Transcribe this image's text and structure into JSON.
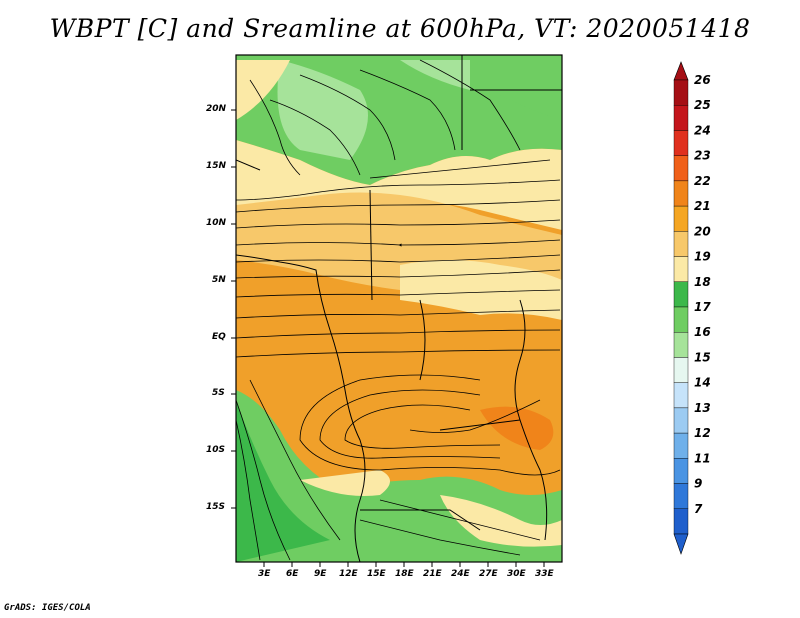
{
  "title": "WBPT [C] and Sreamline at 600hPa, VT: 2020051418",
  "footer": "GrADS: IGES/COLA",
  "lat_labels": [
    "20N",
    "15N",
    "10N",
    "5N",
    "EQ",
    "5S",
    "10S",
    "15S"
  ],
  "lon_labels": [
    "3E",
    "6E",
    "9E",
    "12E",
    "15E",
    "18E",
    "21E",
    "24E",
    "27E",
    "30E",
    "33E"
  ],
  "colorbar": {
    "labels": [
      "26",
      "25",
      "24",
      "23",
      "22",
      "21",
      "20",
      "19",
      "18",
      "17",
      "16",
      "15",
      "14",
      "13",
      "12",
      "11",
      "9",
      "7"
    ],
    "colors": [
      "#a50f15",
      "#c4161c",
      "#e0301e",
      "#f0601a",
      "#f0841a",
      "#f5a623",
      "#f7c86a",
      "#fbe9a6",
      "#3cb84a",
      "#6fcd62",
      "#a6e39a",
      "#e6f7f0",
      "#c6e3fa",
      "#9ccbf2",
      "#6fb0ea",
      "#4a94e3",
      "#2f78d9",
      "#1f5fcc"
    ]
  }
}
